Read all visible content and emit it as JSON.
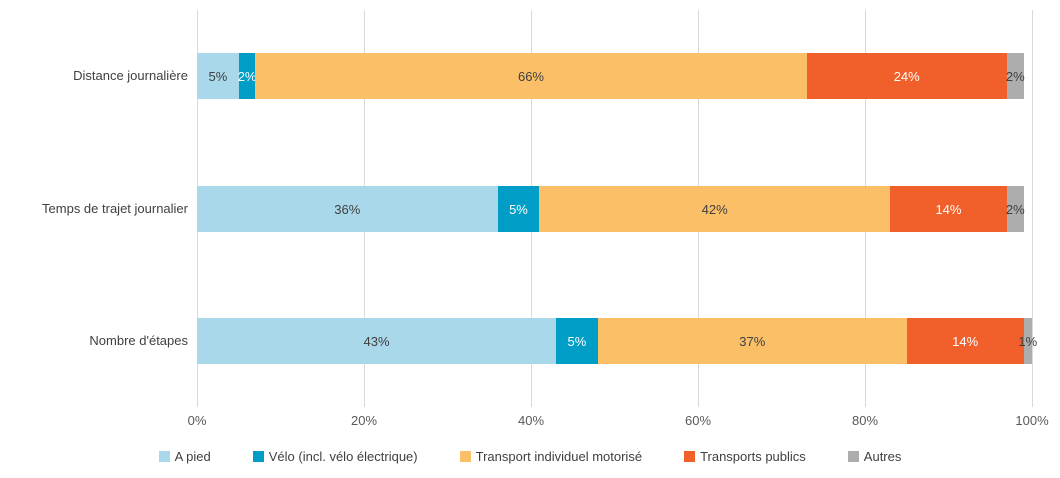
{
  "chart_data": {
    "type": "bar",
    "orientation": "horizontal",
    "stacked": true,
    "title": "",
    "xlabel": "",
    "ylabel": "",
    "categories": [
      "Distance journalière",
      "Temps de trajet journalier",
      "Nombre d'étapes"
    ],
    "series": [
      {
        "name": "A pied",
        "color": "#A8D8EA",
        "label_color": "#404040",
        "values": [
          5,
          36,
          43
        ]
      },
      {
        "name": "Vélo (incl. vélo électrique)",
        "color": "#009EC7",
        "label_color": "#FFFFFF",
        "values": [
          2,
          5,
          5
        ]
      },
      {
        "name": "Transport individuel motorisé",
        "color": "#FBBF68",
        "label_color": "#404040",
        "values": [
          66,
          42,
          37
        ]
      },
      {
        "name": "Transports publics",
        "color": "#F1602A",
        "label_color": "#FFFFFF",
        "values": [
          24,
          14,
          14
        ]
      },
      {
        "name": "Autres",
        "color": "#ADADAD",
        "label_color": "#404040",
        "values": [
          2,
          2,
          1
        ]
      }
    ],
    "value_label_suffix": "%",
    "x_ticks": [
      "0%",
      "20%",
      "40%",
      "60%",
      "80%",
      "100%"
    ],
    "xlim": [
      0,
      100
    ],
    "grid": true,
    "grid_color": "#D9D9D9",
    "legend_position": "bottom"
  }
}
